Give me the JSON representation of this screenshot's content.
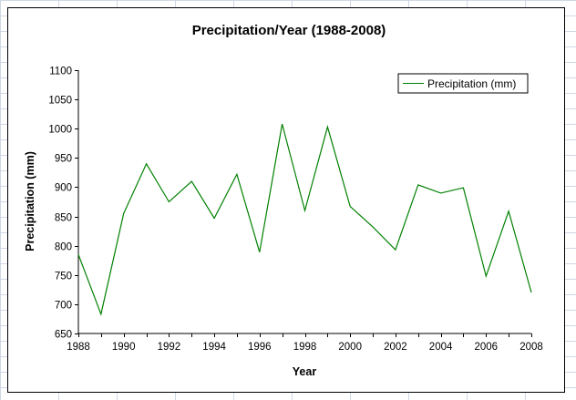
{
  "chart_data": {
    "type": "line",
    "title": "Precipitation/Year (1988-2008)",
    "xlabel": "Year",
    "ylabel": "Precipitation (mm)",
    "x": [
      1988,
      1989,
      1990,
      1991,
      1992,
      1993,
      1994,
      1995,
      1996,
      1997,
      1998,
      1999,
      2000,
      2001,
      2002,
      2003,
      2004,
      2005,
      2006,
      2007,
      2008
    ],
    "series": [
      {
        "name": "Precipitation (mm)",
        "color": "#008000",
        "values": [
          785,
          683,
          855,
          940,
          875,
          910,
          847,
          922,
          789,
          1008,
          860,
          1003,
          867,
          832,
          793,
          904,
          890,
          899,
          748,
          859,
          720
        ]
      }
    ],
    "xlim": [
      1988,
      2008
    ],
    "ylim": [
      650,
      1100
    ],
    "x_ticks": [
      "1988",
      "1990",
      "1992",
      "1994",
      "1996",
      "1998",
      "2000",
      "2002",
      "2004",
      "2006",
      "2008"
    ],
    "y_ticks": [
      "650",
      "700",
      "750",
      "800",
      "850",
      "900",
      "950",
      "1000",
      "1050",
      "1100"
    ],
    "grid": false,
    "legend_position": "top-right"
  }
}
